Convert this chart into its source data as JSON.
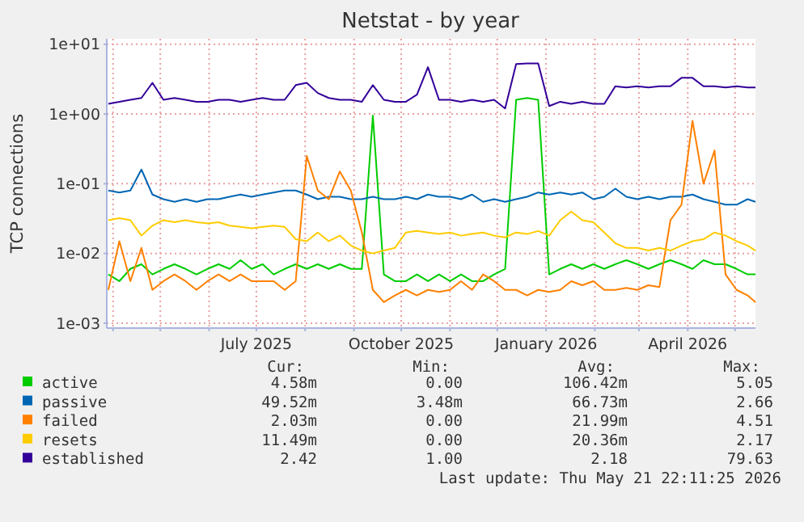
{
  "chart_data": {
    "type": "line",
    "title": "Netstat - by year",
    "ylabel": "TCP connections",
    "log": "y",
    "grid": true,
    "legend": "bottom",
    "x": [
      "2025-03-29",
      "2025-04-05",
      "2025-04-12",
      "2025-04-19",
      "2025-04-26",
      "2025-05-03",
      "2025-05-10",
      "2025-05-17",
      "2025-05-24",
      "2025-05-31",
      "2025-06-07",
      "2025-06-14",
      "2025-06-21",
      "2025-06-28",
      "2025-07-05",
      "2025-07-12",
      "2025-07-19",
      "2025-07-26",
      "2025-08-02",
      "2025-08-09",
      "2025-08-16",
      "2025-08-23",
      "2025-08-30",
      "2025-09-06",
      "2025-09-13",
      "2025-09-20",
      "2025-09-27",
      "2025-10-04",
      "2025-10-11",
      "2025-10-18",
      "2025-10-25",
      "2025-11-01",
      "2025-11-08",
      "2025-11-15",
      "2025-11-22",
      "2025-11-29",
      "2025-12-06",
      "2025-12-13",
      "2025-12-20",
      "2025-12-27",
      "2026-01-03",
      "2026-01-10",
      "2026-01-17",
      "2026-01-24",
      "2026-01-31",
      "2026-02-07",
      "2026-02-14",
      "2026-02-21",
      "2026-02-28",
      "2026-03-07",
      "2026-03-14",
      "2026-03-21",
      "2026-03-28",
      "2026-04-04",
      "2026-04-11",
      "2026-04-18",
      "2026-04-25",
      "2026-05-02",
      "2026-05-09",
      "2026-05-14"
    ],
    "xlim": [
      "2025-03-28",
      "2026-05-14"
    ],
    "xticks": [
      {
        "value": "2025-04-01",
        "label": null
      },
      {
        "value": "2025-05-01",
        "label": null
      },
      {
        "value": "2025-06-01",
        "label": null
      },
      {
        "value": "2025-07-01",
        "label": "July 2025"
      },
      {
        "value": "2025-08-01",
        "label": null
      },
      {
        "value": "2025-09-01",
        "label": null
      },
      {
        "value": "2025-10-01",
        "label": "October 2025"
      },
      {
        "value": "2025-11-01",
        "label": null
      },
      {
        "value": "2025-12-01",
        "label": null
      },
      {
        "value": "2026-01-01",
        "label": "January 2026"
      },
      {
        "value": "2026-02-01",
        "label": null
      },
      {
        "value": "2026-03-01",
        "label": null
      },
      {
        "value": "2026-04-01",
        "label": "April 2026"
      },
      {
        "value": "2026-05-01",
        "label": null
      }
    ],
    "ylim": [
      0.00085,
      12
    ],
    "yticks": [
      {
        "value": 0.001,
        "label": "1e-03"
      },
      {
        "value": 0.01,
        "label": "1e-02"
      },
      {
        "value": 0.1,
        "label": "1e-01"
      },
      {
        "value": 1,
        "label": "1e+00"
      },
      {
        "value": 10,
        "label": "1e+01"
      }
    ],
    "series": [
      {
        "name": "active",
        "color": "#00cc00",
        "values": [
          0.005,
          0.004,
          0.006,
          0.007,
          0.005,
          0.006,
          0.007,
          0.006,
          0.005,
          0.006,
          0.007,
          0.006,
          0.008,
          0.006,
          0.007,
          0.005,
          0.006,
          0.007,
          0.006,
          0.007,
          0.006,
          0.007,
          0.006,
          0.006,
          0.95,
          0.005,
          0.004,
          0.004,
          0.005,
          0.004,
          0.005,
          0.004,
          0.005,
          0.004,
          0.004,
          0.005,
          0.006,
          1.6,
          1.7,
          1.6,
          0.005,
          0.006,
          0.007,
          0.006,
          0.007,
          0.006,
          0.007,
          0.008,
          0.007,
          0.006,
          0.007,
          0.008,
          0.007,
          0.006,
          0.008,
          0.007,
          0.007,
          0.006,
          0.005,
          0.005
        ]
      },
      {
        "name": "passive",
        "color": "#0066b3",
        "values": [
          0.08,
          0.075,
          0.08,
          0.16,
          0.07,
          0.06,
          0.055,
          0.06,
          0.055,
          0.06,
          0.06,
          0.065,
          0.07,
          0.065,
          0.07,
          0.075,
          0.08,
          0.08,
          0.07,
          0.06,
          0.065,
          0.065,
          0.06,
          0.06,
          0.065,
          0.06,
          0.06,
          0.065,
          0.06,
          0.07,
          0.065,
          0.065,
          0.06,
          0.07,
          0.055,
          0.06,
          0.055,
          0.06,
          0.065,
          0.075,
          0.07,
          0.075,
          0.07,
          0.075,
          0.06,
          0.065,
          0.085,
          0.065,
          0.06,
          0.065,
          0.06,
          0.065,
          0.065,
          0.07,
          0.06,
          0.055,
          0.05,
          0.05,
          0.06,
          0.055
        ]
      },
      {
        "name": "failed",
        "color": "#ff8000",
        "values": [
          0.003,
          0.015,
          0.004,
          0.012,
          0.003,
          0.004,
          0.005,
          0.004,
          0.003,
          0.004,
          0.005,
          0.004,
          0.005,
          0.004,
          0.004,
          0.004,
          0.003,
          0.004,
          0.25,
          0.08,
          0.06,
          0.15,
          0.08,
          0.02,
          0.003,
          0.002,
          0.0025,
          0.003,
          0.0025,
          0.003,
          0.0028,
          0.003,
          0.004,
          0.003,
          0.005,
          0.004,
          0.003,
          0.003,
          0.0025,
          0.003,
          0.0028,
          0.003,
          0.004,
          0.0035,
          0.004,
          0.003,
          0.003,
          0.0032,
          0.003,
          0.0035,
          0.0033,
          0.03,
          0.05,
          0.8,
          0.1,
          0.3,
          0.005,
          0.003,
          0.0025,
          0.002
        ]
      },
      {
        "name": "resets",
        "color": "#ffcc00",
        "values": [
          0.03,
          0.032,
          0.03,
          0.018,
          0.025,
          0.03,
          0.028,
          0.03,
          0.028,
          0.027,
          0.028,
          0.025,
          0.024,
          0.023,
          0.024,
          0.025,
          0.024,
          0.016,
          0.015,
          0.02,
          0.015,
          0.018,
          0.013,
          0.011,
          0.01,
          0.011,
          0.012,
          0.02,
          0.021,
          0.02,
          0.019,
          0.02,
          0.018,
          0.019,
          0.02,
          0.018,
          0.017,
          0.02,
          0.019,
          0.021,
          0.018,
          0.03,
          0.04,
          0.03,
          0.028,
          0.02,
          0.014,
          0.012,
          0.012,
          0.011,
          0.012,
          0.011,
          0.013,
          0.015,
          0.016,
          0.02,
          0.018,
          0.015,
          0.013,
          0.011
        ]
      },
      {
        "name": "established",
        "color": "#330099",
        "values": [
          1.4,
          1.5,
          1.6,
          1.7,
          2.8,
          1.6,
          1.7,
          1.6,
          1.5,
          1.5,
          1.6,
          1.6,
          1.5,
          1.6,
          1.7,
          1.6,
          1.6,
          2.6,
          2.8,
          2.0,
          1.7,
          1.6,
          1.6,
          1.5,
          2.6,
          1.6,
          1.5,
          1.5,
          1.9,
          4.7,
          1.6,
          1.6,
          1.5,
          1.6,
          1.5,
          1.6,
          1.2,
          5.2,
          5.3,
          5.3,
          1.3,
          1.5,
          1.4,
          1.5,
          1.4,
          1.4,
          2.5,
          2.4,
          2.5,
          2.4,
          2.5,
          2.5,
          3.3,
          3.3,
          2.5,
          2.5,
          2.4,
          2.5,
          2.4,
          2.4
        ]
      }
    ],
    "annotations": [
      "Cur:",
      "Min:",
      "Avg:",
      "Max:",
      "4.58m",
      "0.00",
      "106.42m",
      "5.05",
      "49.52m",
      "3.48m",
      "66.73m",
      "2.66",
      "2.03m",
      "0.00",
      "21.99m",
      "4.51",
      "11.49m",
      "0.00",
      "20.36m",
      "2.17",
      "2.42",
      "1.00",
      "2.18",
      "79.63",
      "Last update: Thu May 21 22:11:25 2026"
    ]
  }
}
